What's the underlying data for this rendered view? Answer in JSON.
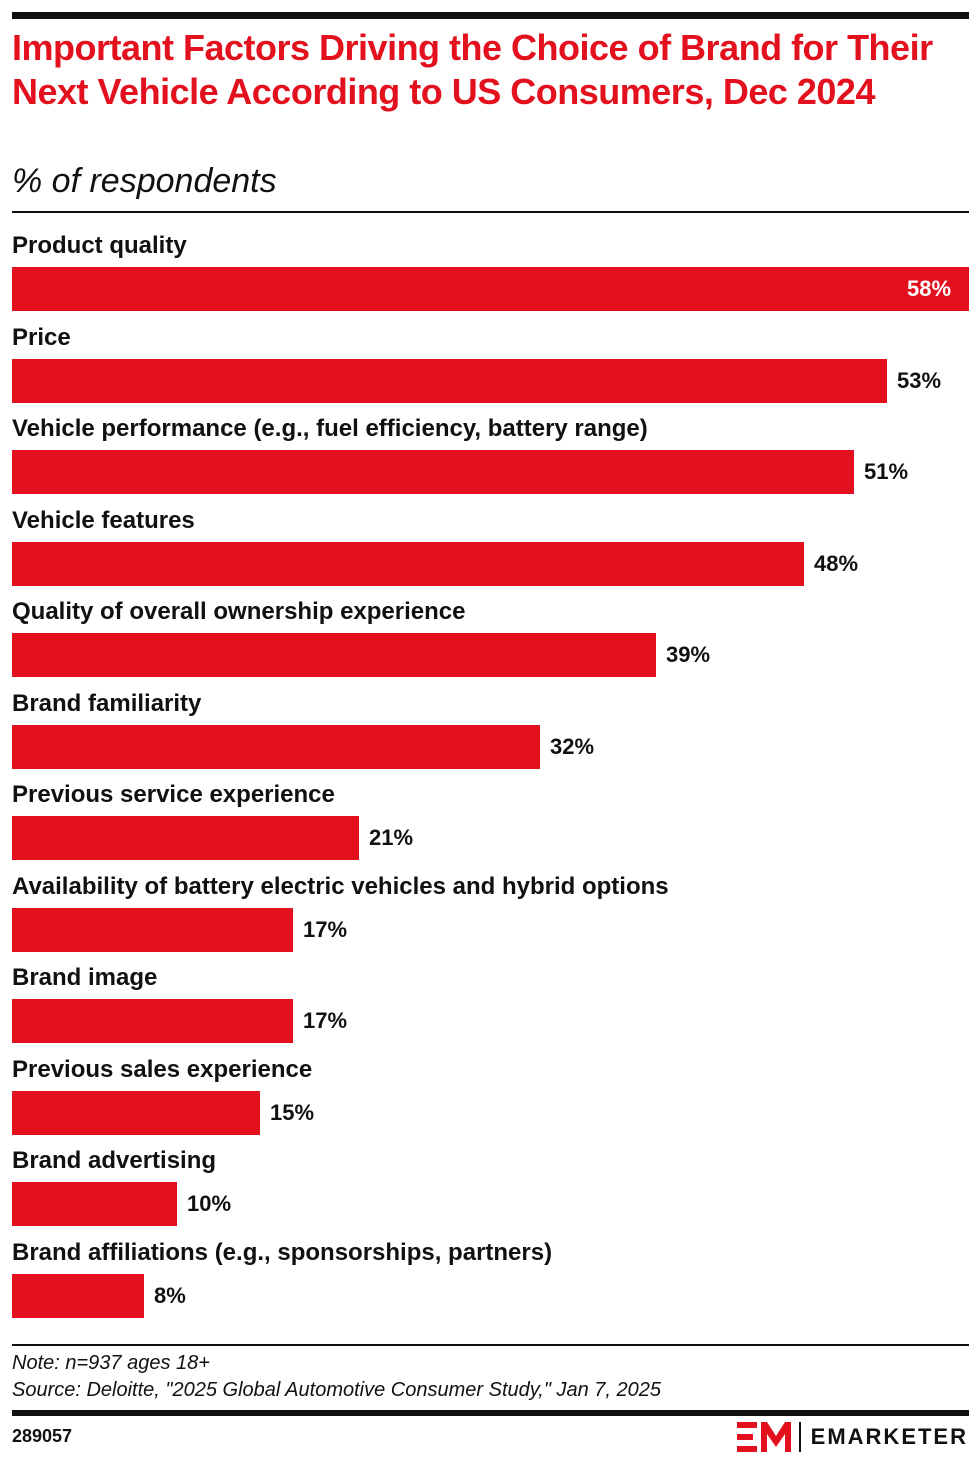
{
  "header": {
    "title": "Important Factors Driving the Choice of Brand for Their Next Vehicle According to US Consumers, Dec 2024",
    "subtitle": "% of respondents"
  },
  "chart_data": {
    "type": "bar",
    "orientation": "horizontal",
    "title": "Important Factors Driving the Choice of Brand for Their Next Vehicle According to US Consumers, Dec 2024",
    "ylabel": "% of respondents",
    "categories": [
      "Product quality",
      "Price",
      "Vehicle performance (e.g., fuel efficiency, battery range)",
      "Vehicle features",
      "Quality of overall ownership experience",
      "Brand familiarity",
      "Previous service experience",
      "Availability of battery electric vehicles and hybrid options",
      "Brand image",
      "Previous sales experience",
      "Brand advertising",
      "Brand affiliations (e.g., sponsorships, partners)"
    ],
    "values": [
      58,
      53,
      51,
      48,
      39,
      32,
      21,
      17,
      17,
      15,
      10,
      8
    ],
    "value_labels": [
      "58%",
      "53%",
      "51%",
      "48%",
      "39%",
      "32%",
      "21%",
      "17%",
      "17%",
      "15%",
      "10%",
      "8%"
    ],
    "xlim": [
      0,
      58
    ],
    "bar_color": "#e3101d"
  },
  "footer": {
    "note": "Note: n=937 ages 18+",
    "source": "Source: Deloitte, \"2025 Global Automotive Consumer Study,\" Jan 7, 2025",
    "chart_id": "289057",
    "brand": "EMARKETER"
  }
}
